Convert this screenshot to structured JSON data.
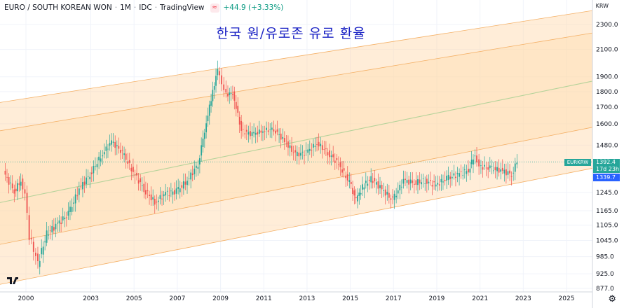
{
  "header": {
    "symbol": "EURO / SOUTH KOREAN WON",
    "interval": "1M",
    "exchange": "IDC",
    "platform": "TradingView",
    "change": "+44.9 (+3.33%)"
  },
  "currency": "KRW",
  "overlay_title": "한국 원/유로존 유로 환율",
  "price_tags": {
    "symbol": "EURKRW",
    "last": "1392.4",
    "countdown": "17d 23h",
    "line": "1339.7"
  },
  "colors": {
    "up": "#26a69a",
    "down": "#ef5350",
    "band_fill": "#ffd8a8",
    "band_line": "#f4b066",
    "mid_line": "#b5d39a",
    "overlay_title": "#1a22c4"
  },
  "icons": [
    "tradingview-logo-icon",
    "gear-icon",
    "red-indicator-icon"
  ],
  "chart_data": {
    "type": "candlestick",
    "title": "한국 원/유로존 유로 환율",
    "x_ticks": [
      "2000",
      "2003",
      "2005",
      "2007",
      "2009",
      "2011",
      "2013",
      "2015",
      "2017",
      "2019",
      "2021",
      "2023",
      "2025"
    ],
    "y_ticks": [
      877,
      925,
      985,
      1045,
      1105,
      1165,
      1245,
      1480,
      1600,
      1700,
      1800,
      1900,
      2100,
      2300
    ],
    "y_tick_labels": [
      "877.0",
      "925.0",
      "985.0",
      "1045.0",
      "1105.0",
      "1165.0",
      "1245.0",
      "1480.0",
      "1600.0",
      "1700.0",
      "1800.0",
      "1900.0",
      "2100.0",
      "2300.0"
    ],
    "y_scale": "log",
    "xlim": [
      1998.8,
      2026.2
    ],
    "last_value": 1392.4,
    "line_value": 1339.7,
    "channel": {
      "type": "regression trend",
      "x": [
        1998.8,
        2026.2
      ],
      "center": [
        1200,
        1870
      ],
      "inner_upper": [
        1560,
        2230
      ],
      "inner_lower": [
        1030,
        1580
      ],
      "outer_upper": [
        1730,
        2420
      ],
      "outer_lower": [
        890,
        1360
      ]
    },
    "series": [
      {
        "x": [
          1999.0,
          1999.5,
          1999.8,
          2000.0,
          2000.2,
          2000.4,
          2000.6,
          2001.0,
          2001.5,
          2002.0,
          2002.5,
          2003.0,
          2003.5,
          2004.0,
          2004.5,
          2005.0,
          2005.5,
          2006.0,
          2006.5,
          2007.0,
          2007.5,
          2008.0,
          2008.3,
          2008.6,
          2008.9,
          2009.1,
          2009.3,
          2009.6,
          2010.0,
          2010.5,
          2011.0,
          2011.5,
          2012.0,
          2012.5,
          2013.0,
          2013.5,
          2014.0,
          2014.5,
          2015.0,
          2015.3,
          2015.6,
          2016.0,
          2016.5,
          2017.0,
          2017.5,
          2018.0,
          2018.5,
          2019.0,
          2019.5,
          2020.0,
          2020.5,
          2020.8,
          2021.0,
          2021.5,
          2022.0,
          2022.5,
          2022.75
        ],
        "close": [
          1340,
          1250,
          1300,
          1240,
          1060,
          1010,
          960,
          1070,
          1110,
          1150,
          1260,
          1330,
          1420,
          1500,
          1440,
          1340,
          1260,
          1200,
          1240,
          1250,
          1300,
          1380,
          1560,
          1750,
          1950,
          1850,
          1780,
          1790,
          1560,
          1540,
          1560,
          1570,
          1500,
          1430,
          1440,
          1490,
          1440,
          1380,
          1290,
          1210,
          1270,
          1310,
          1260,
          1210,
          1300,
          1290,
          1300,
          1280,
          1310,
          1330,
          1350,
          1430,
          1370,
          1360,
          1350,
          1330,
          1392.4
        ]
      }
    ]
  }
}
